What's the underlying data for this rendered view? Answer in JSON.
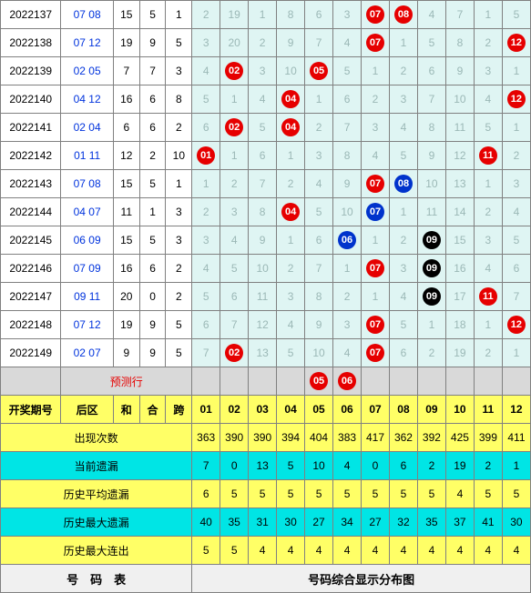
{
  "colors": {
    "grid_bg": "#dff5f3",
    "grid_faint": "#9bb8b6",
    "border": "#808080",
    "ball_red": "#e60000",
    "ball_blue": "#0033cc",
    "ball_black": "#000",
    "header_yellow": "#ffff66",
    "header_cyan": "#00e5e5",
    "predict_bg": "#d9d9d9",
    "back_blue_text": "#0033dd"
  },
  "grid_numbers": [
    "01",
    "02",
    "03",
    "04",
    "05",
    "06",
    "07",
    "08",
    "09",
    "10",
    "11",
    "12"
  ],
  "rows": [
    {
      "issue": "2022137",
      "back": "07 08",
      "he": "15",
      "heval": "5",
      "kua": "1",
      "cells": [
        {
          "v": "2"
        },
        {
          "v": "19"
        },
        {
          "v": "1"
        },
        {
          "v": "8"
        },
        {
          "v": "6"
        },
        {
          "v": "3"
        },
        {
          "v": "07",
          "c": "red"
        },
        {
          "v": "08",
          "c": "red"
        },
        {
          "v": "4"
        },
        {
          "v": "7"
        },
        {
          "v": "1"
        },
        {
          "v": "5"
        }
      ]
    },
    {
      "issue": "2022138",
      "back": "07 12",
      "he": "19",
      "heval": "9",
      "kua": "5",
      "cells": [
        {
          "v": "3"
        },
        {
          "v": "20"
        },
        {
          "v": "2"
        },
        {
          "v": "9"
        },
        {
          "v": "7"
        },
        {
          "v": "4"
        },
        {
          "v": "07",
          "c": "red"
        },
        {
          "v": "1"
        },
        {
          "v": "5"
        },
        {
          "v": "8"
        },
        {
          "v": "2"
        },
        {
          "v": "12",
          "c": "red"
        }
      ]
    },
    {
      "issue": "2022139",
      "back": "02 05",
      "he": "7",
      "heval": "7",
      "kua": "3",
      "cells": [
        {
          "v": "4"
        },
        {
          "v": "02",
          "c": "red"
        },
        {
          "v": "3"
        },
        {
          "v": "10"
        },
        {
          "v": "05",
          "c": "red"
        },
        {
          "v": "5"
        },
        {
          "v": "1"
        },
        {
          "v": "2"
        },
        {
          "v": "6"
        },
        {
          "v": "9"
        },
        {
          "v": "3"
        },
        {
          "v": "1"
        }
      ]
    },
    {
      "issue": "2022140",
      "back": "04 12",
      "he": "16",
      "heval": "6",
      "kua": "8",
      "cells": [
        {
          "v": "5"
        },
        {
          "v": "1"
        },
        {
          "v": "4"
        },
        {
          "v": "04",
          "c": "red"
        },
        {
          "v": "1"
        },
        {
          "v": "6"
        },
        {
          "v": "2"
        },
        {
          "v": "3"
        },
        {
          "v": "7"
        },
        {
          "v": "10"
        },
        {
          "v": "4"
        },
        {
          "v": "12",
          "c": "red"
        }
      ]
    },
    {
      "issue": "2022141",
      "back": "02 04",
      "he": "6",
      "heval": "6",
      "kua": "2",
      "cells": [
        {
          "v": "6"
        },
        {
          "v": "02",
          "c": "red"
        },
        {
          "v": "5"
        },
        {
          "v": "04",
          "c": "red"
        },
        {
          "v": "2"
        },
        {
          "v": "7"
        },
        {
          "v": "3"
        },
        {
          "v": "4"
        },
        {
          "v": "8"
        },
        {
          "v": "11"
        },
        {
          "v": "5"
        },
        {
          "v": "1"
        }
      ]
    },
    {
      "issue": "2022142",
      "back": "01 11",
      "he": "12",
      "heval": "2",
      "kua": "10",
      "cells": [
        {
          "v": "01",
          "c": "red"
        },
        {
          "v": "1"
        },
        {
          "v": "6"
        },
        {
          "v": "1"
        },
        {
          "v": "3"
        },
        {
          "v": "8"
        },
        {
          "v": "4"
        },
        {
          "v": "5"
        },
        {
          "v": "9"
        },
        {
          "v": "12"
        },
        {
          "v": "11",
          "c": "red"
        },
        {
          "v": "2"
        }
      ]
    },
    {
      "issue": "2022143",
      "back": "07 08",
      "he": "15",
      "heval": "5",
      "kua": "1",
      "cells": [
        {
          "v": "1"
        },
        {
          "v": "2"
        },
        {
          "v": "7"
        },
        {
          "v": "2"
        },
        {
          "v": "4"
        },
        {
          "v": "9"
        },
        {
          "v": "07",
          "c": "red"
        },
        {
          "v": "08",
          "c": "blue"
        },
        {
          "v": "10"
        },
        {
          "v": "13"
        },
        {
          "v": "1"
        },
        {
          "v": "3"
        }
      ]
    },
    {
      "issue": "2022144",
      "back": "04 07",
      "he": "11",
      "heval": "1",
      "kua": "3",
      "cells": [
        {
          "v": "2"
        },
        {
          "v": "3"
        },
        {
          "v": "8"
        },
        {
          "v": "04",
          "c": "red"
        },
        {
          "v": "5"
        },
        {
          "v": "10"
        },
        {
          "v": "07",
          "c": "blue"
        },
        {
          "v": "1"
        },
        {
          "v": "11"
        },
        {
          "v": "14"
        },
        {
          "v": "2"
        },
        {
          "v": "4"
        }
      ]
    },
    {
      "issue": "2022145",
      "back": "06 09",
      "he": "15",
      "heval": "5",
      "kua": "3",
      "cells": [
        {
          "v": "3"
        },
        {
          "v": "4"
        },
        {
          "v": "9"
        },
        {
          "v": "1"
        },
        {
          "v": "6"
        },
        {
          "v": "06",
          "c": "blue"
        },
        {
          "v": "1"
        },
        {
          "v": "2"
        },
        {
          "v": "09",
          "c": "black"
        },
        {
          "v": "15"
        },
        {
          "v": "3"
        },
        {
          "v": "5"
        }
      ]
    },
    {
      "issue": "2022146",
      "back": "07 09",
      "he": "16",
      "heval": "6",
      "kua": "2",
      "cells": [
        {
          "v": "4"
        },
        {
          "v": "5"
        },
        {
          "v": "10"
        },
        {
          "v": "2"
        },
        {
          "v": "7"
        },
        {
          "v": "1"
        },
        {
          "v": "07",
          "c": "red"
        },
        {
          "v": "3"
        },
        {
          "v": "09",
          "c": "black"
        },
        {
          "v": "16"
        },
        {
          "v": "4"
        },
        {
          "v": "6"
        }
      ]
    },
    {
      "issue": "2022147",
      "back": "09 11",
      "he": "20",
      "heval": "0",
      "kua": "2",
      "cells": [
        {
          "v": "5"
        },
        {
          "v": "6"
        },
        {
          "v": "11"
        },
        {
          "v": "3"
        },
        {
          "v": "8"
        },
        {
          "v": "2"
        },
        {
          "v": "1"
        },
        {
          "v": "4"
        },
        {
          "v": "09",
          "c": "black"
        },
        {
          "v": "17"
        },
        {
          "v": "11",
          "c": "red"
        },
        {
          "v": "7"
        }
      ]
    },
    {
      "issue": "2022148",
      "back": "07 12",
      "he": "19",
      "heval": "9",
      "kua": "5",
      "cells": [
        {
          "v": "6"
        },
        {
          "v": "7"
        },
        {
          "v": "12"
        },
        {
          "v": "4"
        },
        {
          "v": "9"
        },
        {
          "v": "3"
        },
        {
          "v": "07",
          "c": "red"
        },
        {
          "v": "5"
        },
        {
          "v": "1"
        },
        {
          "v": "18"
        },
        {
          "v": "1"
        },
        {
          "v": "12",
          "c": "red"
        }
      ]
    },
    {
      "issue": "2022149",
      "back": "02 07",
      "he": "9",
      "heval": "9",
      "kua": "5",
      "cells": [
        {
          "v": "7"
        },
        {
          "v": "02",
          "c": "red"
        },
        {
          "v": "13"
        },
        {
          "v": "5"
        },
        {
          "v": "10"
        },
        {
          "v": "4"
        },
        {
          "v": "07",
          "c": "red"
        },
        {
          "v": "6"
        },
        {
          "v": "2"
        },
        {
          "v": "19"
        },
        {
          "v": "2"
        },
        {
          "v": "1"
        }
      ]
    }
  ],
  "predict": {
    "label": "预测行",
    "cells": [
      {
        "v": ""
      },
      {
        "v": ""
      },
      {
        "v": ""
      },
      {
        "v": ""
      },
      {
        "v": "05",
        "c": "red"
      },
      {
        "v": "06",
        "c": "red"
      },
      {
        "v": ""
      },
      {
        "v": ""
      },
      {
        "v": ""
      },
      {
        "v": ""
      },
      {
        "v": ""
      },
      {
        "v": ""
      }
    ]
  },
  "header": {
    "issue": "开奖期号",
    "back": "后区",
    "he": "和",
    "heval": "合",
    "kua": "跨"
  },
  "stats": [
    {
      "label": "出现次数",
      "style": "yellow",
      "vals": [
        "363",
        "390",
        "390",
        "394",
        "404",
        "383",
        "417",
        "362",
        "392",
        "425",
        "399",
        "411"
      ]
    },
    {
      "label": "当前遗漏",
      "style": "cyan",
      "vals": [
        "7",
        "0",
        "13",
        "5",
        "10",
        "4",
        "0",
        "6",
        "2",
        "19",
        "2",
        "1"
      ]
    },
    {
      "label": "历史平均遗漏",
      "style": "yellow",
      "vals": [
        "6",
        "5",
        "5",
        "5",
        "5",
        "5",
        "5",
        "5",
        "5",
        "4",
        "5",
        "5"
      ]
    },
    {
      "label": "历史最大遗漏",
      "style": "cyan",
      "vals": [
        "40",
        "35",
        "31",
        "30",
        "27",
        "34",
        "27",
        "32",
        "35",
        "37",
        "41",
        "30"
      ]
    },
    {
      "label": "历史最大连出",
      "style": "yellow",
      "vals": [
        "5",
        "5",
        "4",
        "4",
        "4",
        "4",
        "4",
        "4",
        "4",
        "4",
        "4",
        "4"
      ]
    }
  ],
  "footer": {
    "left": "号　码　表",
    "right": "号码综合显示分布图"
  }
}
